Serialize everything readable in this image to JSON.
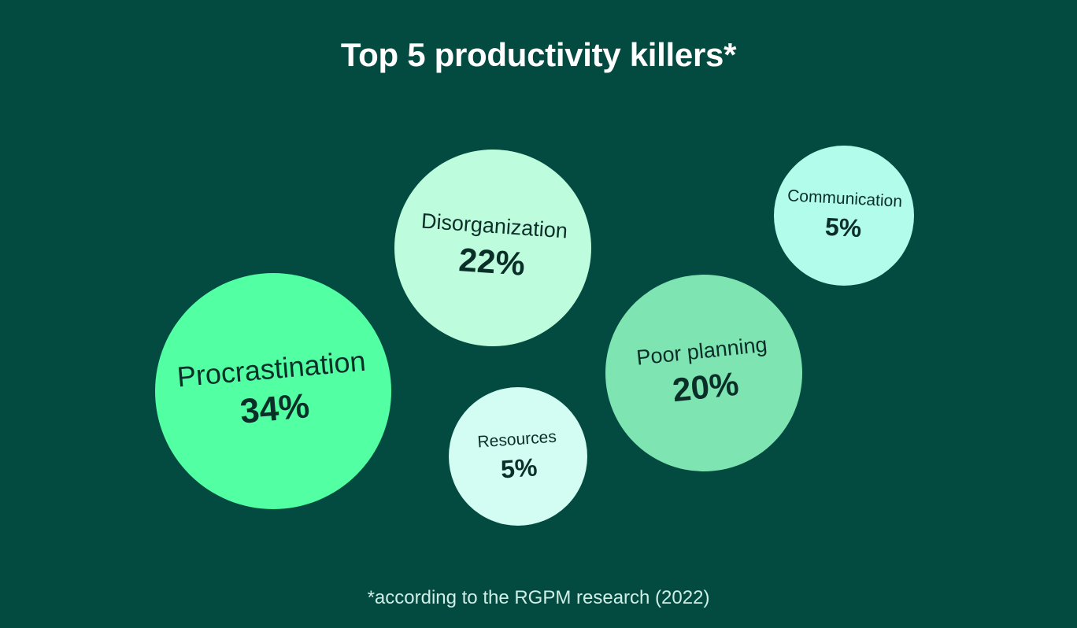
{
  "chart_data": {
    "type": "bubble",
    "title": "Top 5 productivity killers*",
    "footnote": "*according to the RGPM research (2022)",
    "unit": "%",
    "items": [
      {
        "name": "Procrastination",
        "value": 34,
        "label": "34%",
        "color": "#52ffa3"
      },
      {
        "name": "Disorganization",
        "value": 22,
        "label": "22%",
        "color": "#bdfcdc"
      },
      {
        "name": "Poor planning",
        "value": 20,
        "label": "20%",
        "color": "#7de4b2"
      },
      {
        "name": "Communication",
        "value": 5,
        "label": "5%",
        "color": "#b2fcec"
      },
      {
        "name": "Resources",
        "value": 5,
        "label": "5%",
        "color": "#d3fcf2"
      }
    ]
  }
}
